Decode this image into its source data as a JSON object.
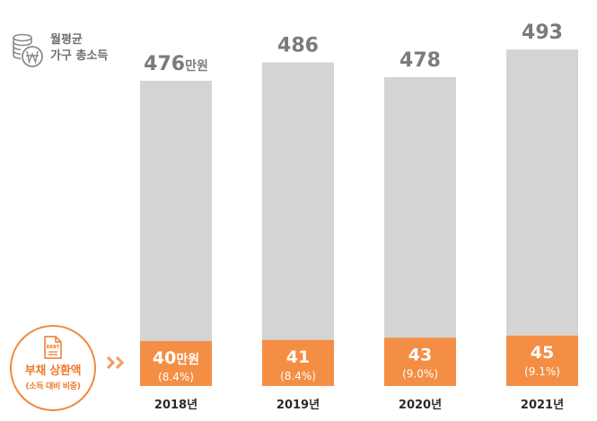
{
  "legend": {
    "income_label_line1": "월평균",
    "income_label_line2": "가구 총소득",
    "income_icon": "coin-stack-won-icon",
    "debt_label": "부채 상환액",
    "debt_sublabel": "(소득 대비 비중)",
    "debt_icon": "debt-document-icon",
    "debt_icon_text": "DEBT",
    "arrow_icon": "double-chevron-right-icon"
  },
  "colors": {
    "income_bar": "#d4d4d4",
    "debt_bar": "#f48e44",
    "income_label": "#7b7b7b",
    "year_label": "#2b2b2b",
    "accent": "#ee7a2b"
  },
  "chart_data": {
    "type": "bar",
    "stacked": true,
    "categories": [
      "2018년",
      "2019년",
      "2020년",
      "2021년"
    ],
    "series": [
      {
        "values": [
          40,
          41,
          43,
          45
        ],
        "labels": [
          "40만원",
          "41",
          "43",
          "45"
        ],
        "share_labels": [
          "(8.4%)",
          "(8.4%)",
          "(9.0%)",
          "(9.1%)"
        ]
      },
      {
        "values": [
          476,
          486,
          478,
          493
        ],
        "labels": [
          "476만원",
          "486",
          "478",
          "493"
        ]
      }
    ],
    "unit": "만원",
    "title": "",
    "xlabel": "",
    "ylabel": "",
    "grid": false,
    "legend_position": "left"
  }
}
